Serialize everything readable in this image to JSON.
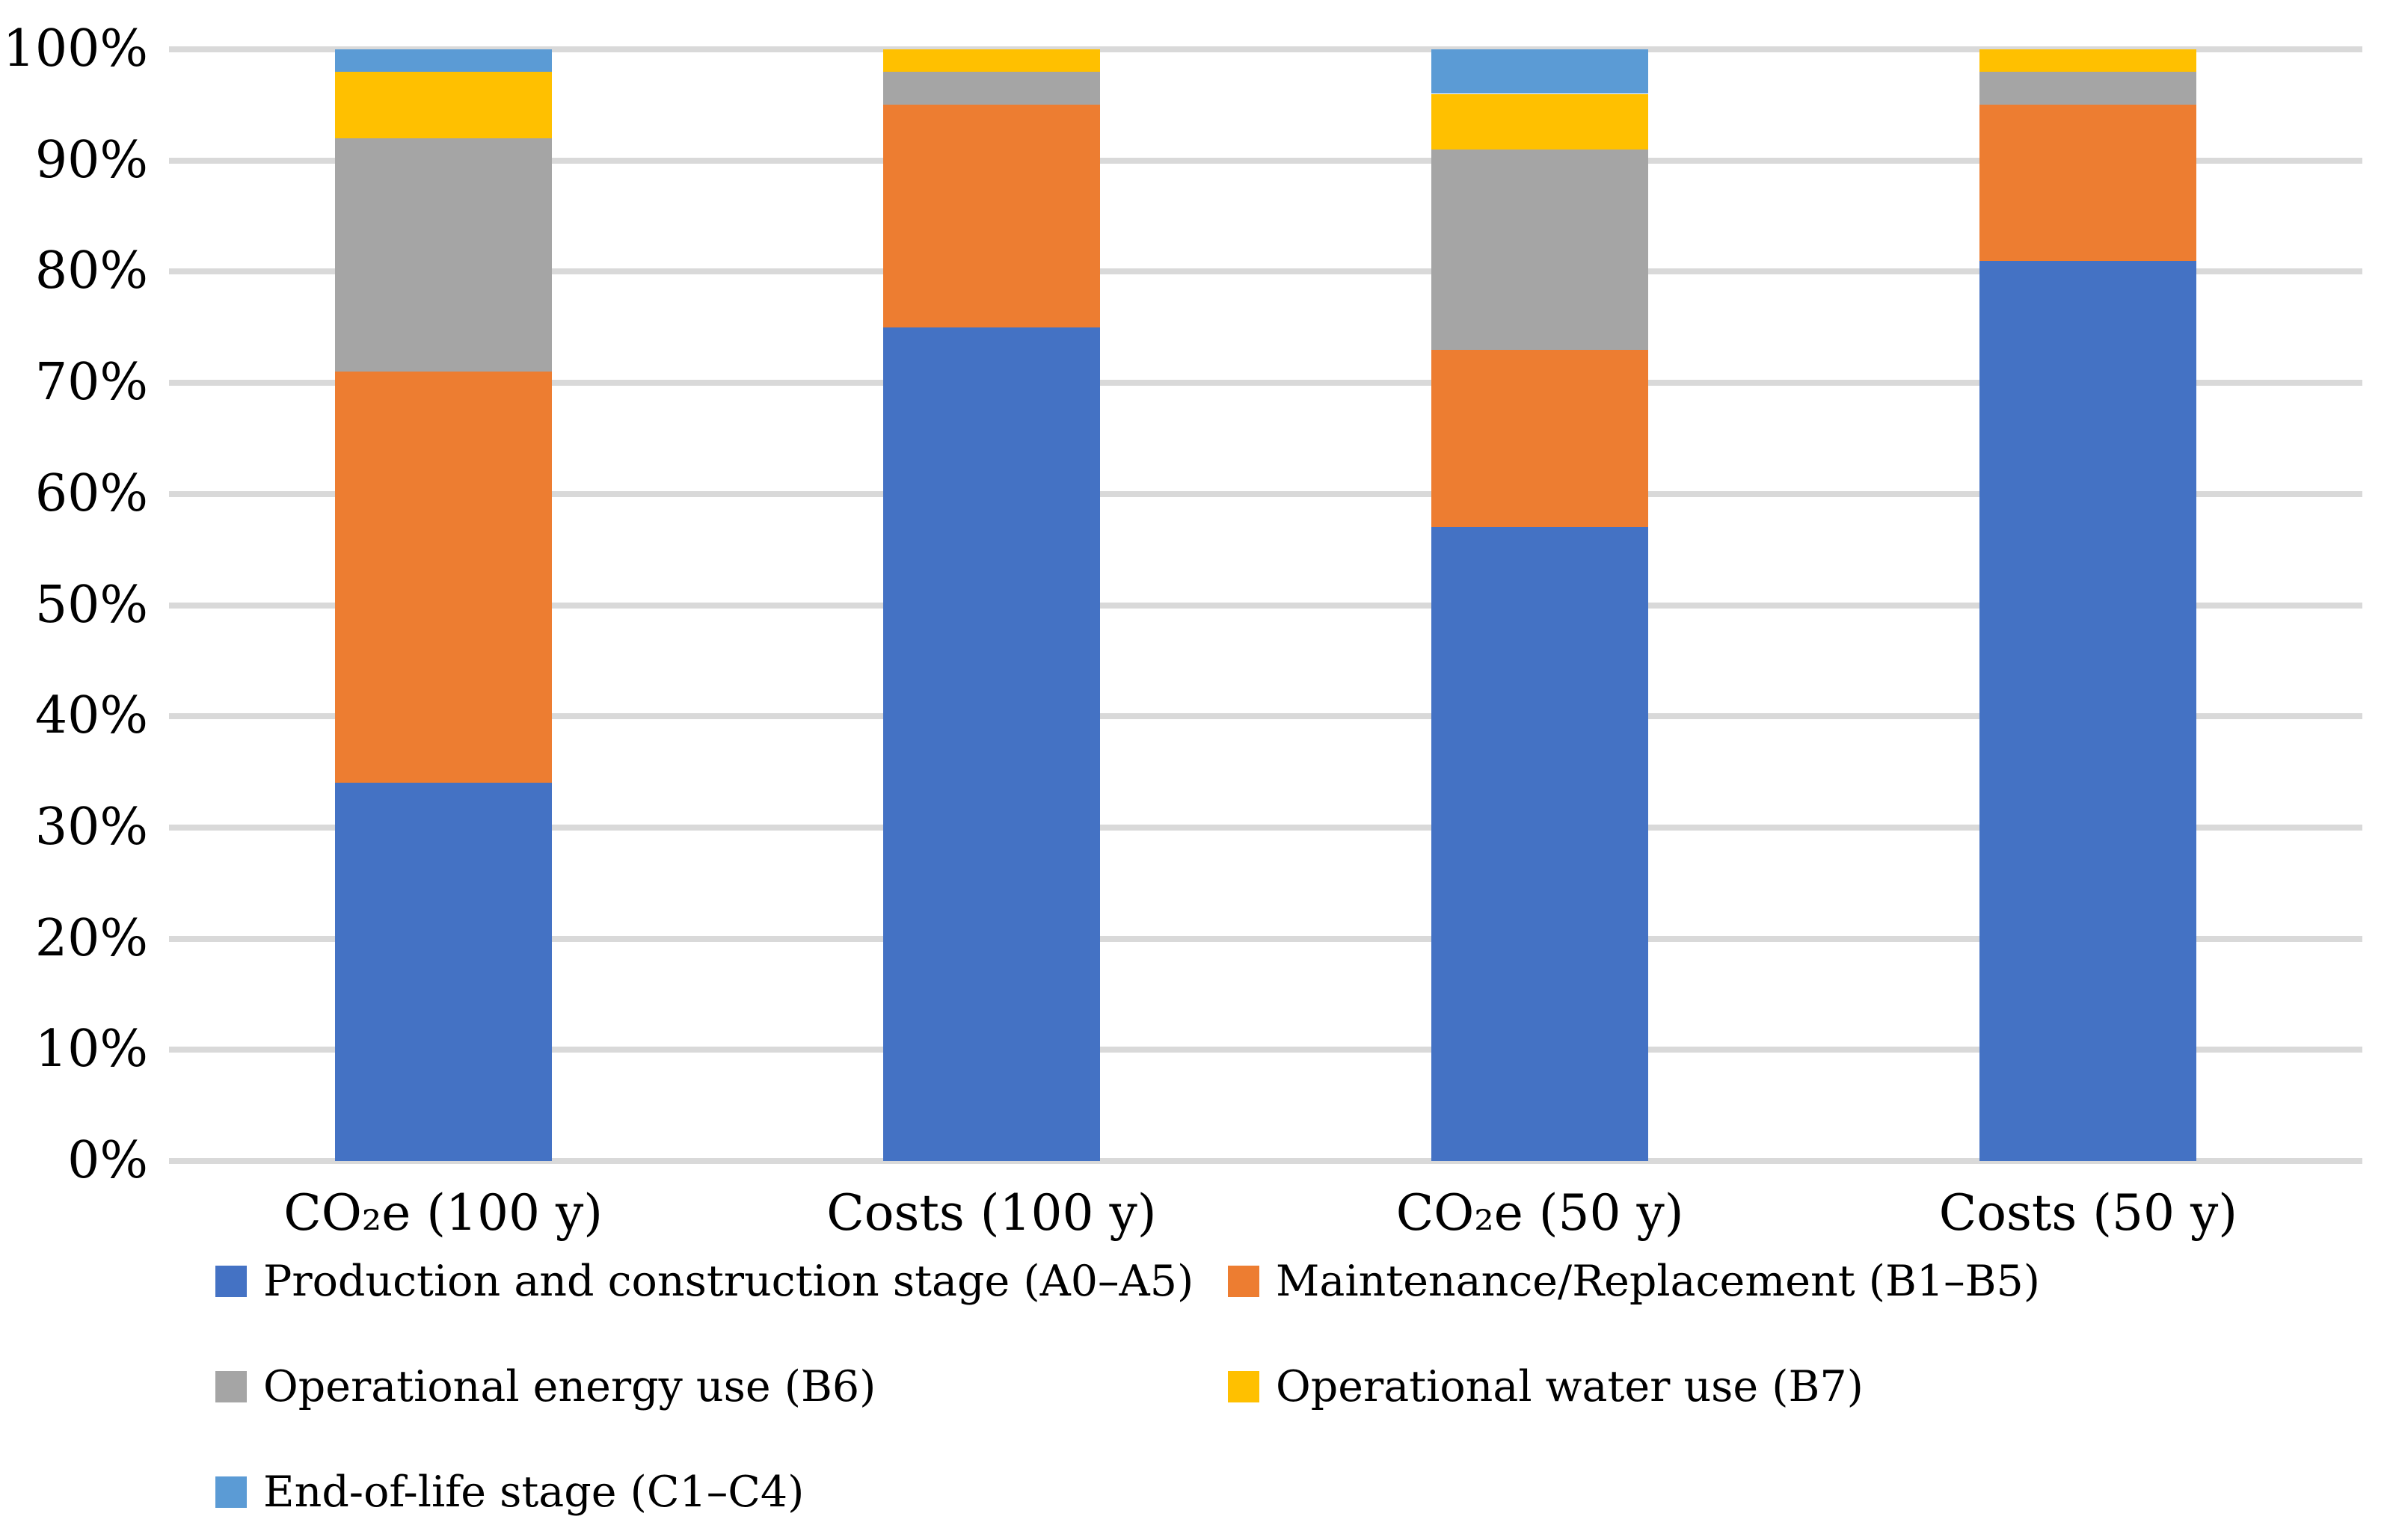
{
  "chart_data": {
    "type": "bar",
    "variant": "stacked-100",
    "title": "",
    "xlabel": "",
    "ylabel": "",
    "categories": [
      "CO₂e (100 y)",
      "Costs (100 y)",
      "CO₂e (50 y)",
      "Costs (50 y)"
    ],
    "series": [
      {
        "name": "Production and construction stage (A0–A5)",
        "color": "#4472C4",
        "values": [
          34,
          75,
          57,
          81
        ]
      },
      {
        "name": "Maintenance/Replacement (B1–B5)",
        "color": "#ED7D31",
        "values": [
          37,
          20,
          16,
          14
        ]
      },
      {
        "name": "Operational energy use (B6)",
        "color": "#A5A5A5",
        "values": [
          21,
          3,
          18,
          3
        ]
      },
      {
        "name": "Operational water use (B7)",
        "color": "#FFC000",
        "values": [
          6,
          2,
          5,
          2
        ]
      },
      {
        "name": "End-of-life stage (C1–C4)",
        "color": "#5B9BD5",
        "values": [
          2,
          0,
          4,
          0
        ]
      }
    ],
    "y_axis": {
      "min": 0,
      "max": 100,
      "tick_step": 10,
      "tick_labels": [
        "0%",
        "10%",
        "20%",
        "30%",
        "40%",
        "50%",
        "60%",
        "70%",
        "80%",
        "90%",
        "100%"
      ]
    },
    "grid": true,
    "gridline_color": "#D9D9D9",
    "background_color": "#FFFFFF",
    "text_color": "#000000",
    "legend_position": "bottom"
  }
}
